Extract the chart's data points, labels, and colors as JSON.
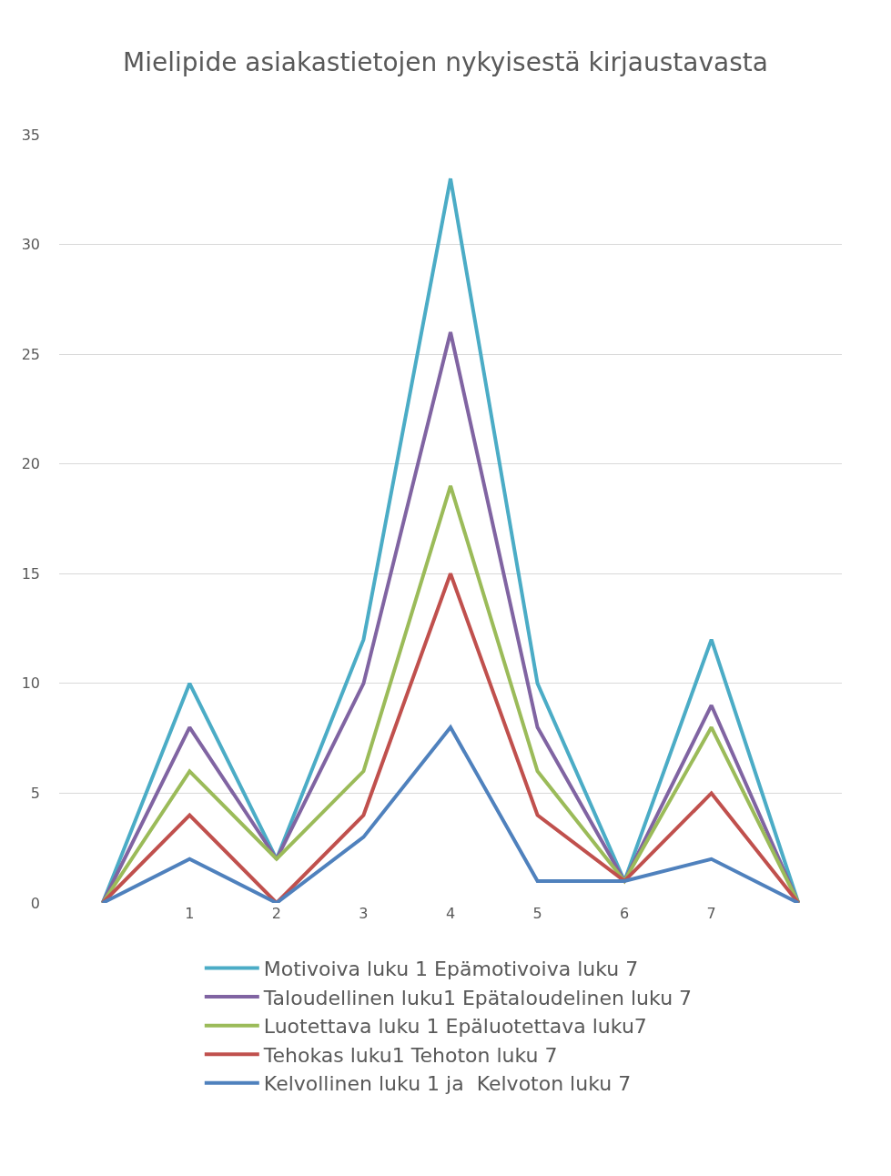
{
  "chart_data": {
    "type": "line",
    "title": "Mielipide asiakastietojen nykyisestä kirjaustavasta",
    "categories": [
      null,
      "1",
      "2",
      "3",
      "4",
      "5",
      "6",
      "7",
      null
    ],
    "series": [
      {
        "name": "Motivoiva luku 1 Epämotivoiva luku 7",
        "color": "#4bacc6",
        "values": [
          0,
          10,
          2,
          12,
          33,
          10,
          1,
          12,
          0
        ]
      },
      {
        "name": "Taloudellinen luku1 Epätaloudelinen luku 7",
        "color": "#8064a2",
        "values": [
          0,
          8,
          2,
          10,
          26,
          8,
          1,
          9,
          0
        ]
      },
      {
        "name": "Luotettava luku 1 Epäluotettava luku7",
        "color": "#9bbb59",
        "values": [
          0,
          6,
          2,
          6,
          19,
          6,
          1,
          8,
          0
        ]
      },
      {
        "name": "Tehokas luku1 Tehoton luku 7",
        "color": "#c0504d",
        "values": [
          0,
          4,
          0,
          4,
          15,
          4,
          1,
          5,
          0
        ]
      },
      {
        "name": "Kelvollinen luku 1 ja  Kelvoton luku 7",
        "color": "#4f81bd",
        "values": [
          0,
          2,
          0,
          3,
          8,
          1,
          1,
          2,
          0
        ]
      }
    ],
    "ylim": [
      0,
      35
    ],
    "yticks": [
      0,
      5,
      10,
      15,
      20,
      25,
      30,
      35
    ],
    "grid": "y",
    "legend": "bottom",
    "marker": "none",
    "line_style": "solid"
  }
}
